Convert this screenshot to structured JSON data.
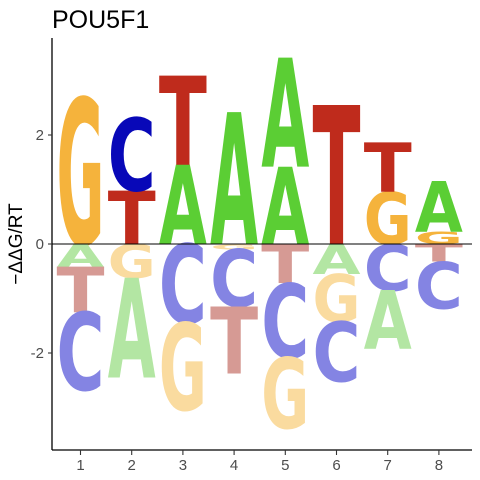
{
  "chart_data": {
    "type": "energy-logo",
    "title": "POU5F1",
    "ylabel": "−ΔΔG/RT",
    "xlabel": "",
    "x_ticks": [
      "1",
      "2",
      "3",
      "4",
      "5",
      "6",
      "7",
      "8"
    ],
    "y_ticks": [
      {
        "value": -2,
        "label": "-2"
      },
      {
        "value": 0,
        "label": "0"
      },
      {
        "value": 2,
        "label": "2"
      }
    ],
    "ylim": [
      -3.8,
      3.8
    ],
    "colors": {
      "A": "#5bce34",
      "C": "#0808b8",
      "G": "#f5b33c",
      "T": "#bf2b1c",
      "A_faded": "#b3e6a3",
      "C_faded": "#8484e3",
      "G_faded": "#fadb9f",
      "T_faded": "#d69a94"
    },
    "positions": [
      {
        "position": 1,
        "above": [
          {
            "letter": "G",
            "from": 0,
            "to": 2.68
          }
        ],
        "below": [
          {
            "letter": "A",
            "from": 0,
            "to": -0.42
          },
          {
            "letter": "T",
            "from": -0.42,
            "to": -1.25
          },
          {
            "letter": "C",
            "from": -1.25,
            "to": -2.68
          }
        ]
      },
      {
        "position": 2,
        "above": [
          {
            "letter": "T",
            "from": 0,
            "to": 0.98
          },
          {
            "letter": "C",
            "from": 0.98,
            "to": 2.32
          }
        ],
        "below": [
          {
            "letter": "G",
            "from": 0,
            "to": -0.62
          },
          {
            "letter": "A",
            "from": -0.62,
            "to": -2.45
          }
        ]
      },
      {
        "position": 3,
        "above": [
          {
            "letter": "A",
            "from": 0,
            "to": 1.45
          },
          {
            "letter": "T",
            "from": 1.45,
            "to": 3.08
          }
        ],
        "below": [
          {
            "letter": "C",
            "from": 0,
            "to": -1.45
          },
          {
            "letter": "G",
            "from": -1.45,
            "to": -3.05
          }
        ]
      },
      {
        "position": 4,
        "above": [
          {
            "letter": "A",
            "from": 0,
            "to": 2.42
          }
        ],
        "below": [
          {
            "letter": "G",
            "from": 0,
            "to": -0.1
          },
          {
            "letter": "C",
            "from": -0.1,
            "to": -1.15
          },
          {
            "letter": "T",
            "from": -1.15,
            "to": -2.38
          }
        ]
      },
      {
        "position": 5,
        "above": [
          {
            "letter": "A",
            "from": 0,
            "to": 1.42
          },
          {
            "letter": "A",
            "from": 1.42,
            "to": 3.42
          }
        ],
        "below": [
          {
            "letter": "T",
            "from": 0,
            "to": -0.72
          },
          {
            "letter": "C",
            "from": -0.72,
            "to": -2.08
          },
          {
            "letter": "G",
            "from": -2.08,
            "to": -3.38
          }
        ]
      },
      {
        "position": 6,
        "above": [
          {
            "letter": "T",
            "from": 0,
            "to": 2.55
          }
        ],
        "below": [
          {
            "letter": "A",
            "from": 0,
            "to": -0.55
          },
          {
            "letter": "G",
            "from": -0.55,
            "to": -1.42
          },
          {
            "letter": "C",
            "from": -1.42,
            "to": -2.52
          }
        ]
      },
      {
        "position": 7,
        "above": [
          {
            "letter": "G",
            "from": 0,
            "to": 0.95
          },
          {
            "letter": "T",
            "from": 0.95,
            "to": 1.85
          }
        ],
        "below": [
          {
            "letter": "C",
            "from": 0,
            "to": -0.85
          },
          {
            "letter": "A",
            "from": -0.85,
            "to": -1.92
          }
        ]
      },
      {
        "position": 8,
        "above": [
          {
            "letter": "G",
            "from": 0,
            "to": 0.22
          },
          {
            "letter": "A",
            "from": 0.22,
            "to": 1.15
          }
        ],
        "below": [
          {
            "letter": "T",
            "from": 0,
            "to": -0.32
          },
          {
            "letter": "C",
            "from": -0.32,
            "to": -1.18
          }
        ]
      }
    ]
  }
}
